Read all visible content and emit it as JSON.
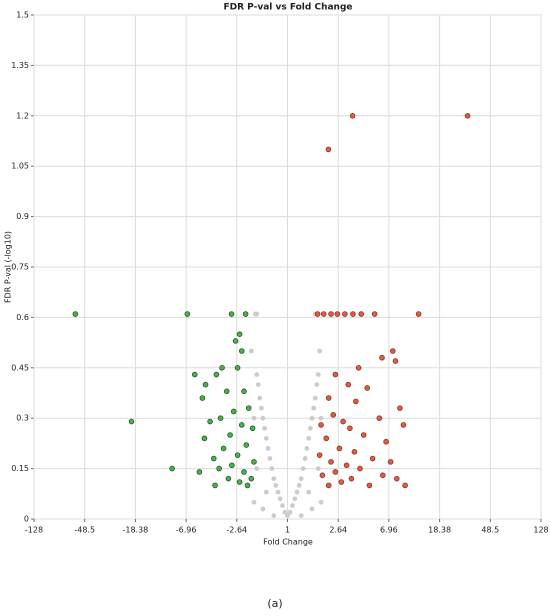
{
  "chart_data": {
    "type": "scatter",
    "title": "FDR P-val vs Fold Change",
    "x_label": "Fold Change",
    "y_label": "FDR P-val (-log10)",
    "caption": "(a)",
    "xscale": "signed-log2",
    "grid": true,
    "xlim": [
      -128,
      128
    ],
    "xticks": [
      -128,
      -48.5,
      -18.38,
      -6.96,
      -2.64,
      1,
      2.64,
      6.96,
      18.38,
      48.5,
      128
    ],
    "ylim": [
      0,
      1.5
    ],
    "yticks": [
      0,
      0.15,
      0.3,
      0.45,
      0.6,
      0.75,
      0.9,
      1.05,
      1.2,
      1.35,
      1.5
    ],
    "series": [
      {
        "color": "#cccccc",
        "stroke": "none",
        "x": [
          1,
          1.05,
          -1.05,
          1.1,
          -1.1,
          1.15,
          -1.15,
          1.2,
          -1.2,
          1.25,
          -1.25,
          1.3,
          -1.3,
          1.35,
          -1.35,
          1.4,
          -1.4,
          1.45,
          -1.45,
          1.5,
          -1.5,
          1.55,
          -1.55,
          1.6,
          -1.6,
          1.65,
          -1.65,
          1.7,
          -1.7,
          1.75,
          -1.75,
          1.8,
          -1.8,
          1.7,
          1.75,
          -1.8,
          -1.85,
          1.9,
          -1.9,
          1.6,
          -1.6,
          1.3,
          -1.3,
          1.8,
          -1.8,
          1.5,
          -1.5,
          1.9,
          -1.9,
          1.85,
          -2.0
        ],
        "values": [
          0.01,
          0.02,
          0.02,
          0.04,
          0.04,
          0.06,
          0.06,
          0.08,
          0.08,
          0.1,
          0.1,
          0.12,
          0.12,
          0.15,
          0.15,
          0.18,
          0.18,
          0.21,
          0.21,
          0.24,
          0.24,
          0.27,
          0.27,
          0.3,
          0.3,
          0.33,
          0.33,
          0.36,
          0.36,
          0.4,
          0.4,
          0.43,
          0.43,
          0.61,
          0.61,
          0.61,
          0.61,
          0.05,
          0.05,
          0.03,
          0.03,
          0.01,
          0.01,
          0.15,
          0.15,
          0.08,
          0.08,
          0.3,
          0.3,
          0.5,
          0.5
        ]
      },
      {
        "color": "#e8584a",
        "stroke": "#7a3a1c",
        "x": [
          3.48,
          31.4,
          2.19,
          12.3,
          1.78,
          2.0,
          2.3,
          2.6,
          3.0,
          3.5,
          4.1,
          5.3,
          7.5,
          7.9,
          6.1,
          3.9,
          2.5,
          3.2,
          4.6,
          2.2,
          3.7,
          8.6,
          2.4,
          2.9,
          5.8,
          1.9,
          3.3,
          9.2,
          4.3,
          2.1,
          6.6,
          2.7,
          3.6,
          1.85,
          5.1,
          2.3,
          7.2,
          3.1,
          4.0,
          2.5,
          1.95,
          6.2,
          3.4,
          8.1,
          2.8,
          4.8,
          2.2,
          9.5
        ],
        "values": [
          1.2,
          1.2,
          1.1,
          0.61,
          0.61,
          0.61,
          0.61,
          0.61,
          0.61,
          0.61,
          0.61,
          0.61,
          0.5,
          0.47,
          0.48,
          0.45,
          0.43,
          0.4,
          0.39,
          0.36,
          0.35,
          0.33,
          0.31,
          0.29,
          0.3,
          0.28,
          0.27,
          0.28,
          0.25,
          0.24,
          0.23,
          0.21,
          0.2,
          0.19,
          0.18,
          0.17,
          0.17,
          0.16,
          0.15,
          0.14,
          0.13,
          0.13,
          0.12,
          0.12,
          0.11,
          0.1,
          0.1,
          0.1
        ]
      },
      {
        "color": "#4caf50",
        "stroke": "#1d5a1f",
        "x": [
          -58,
          -19.8,
          -9.1,
          -6.8,
          -2.92,
          -2.23,
          -5.9,
          -4.8,
          -3.9,
          -2.6,
          -2.3,
          -3.2,
          -5.1,
          -2.1,
          -2.8,
          -3.6,
          -4.4,
          -2.4,
          -1.95,
          -3.0,
          -4.9,
          -2.2,
          -3.4,
          -2.6,
          -4.1,
          -1.9,
          -2.9,
          -3.7,
          -2.3,
          -5.4,
          -2.0,
          -3.1,
          -2.5,
          -4.0,
          -2.15,
          -3.5,
          -2.7,
          -2.5,
          -2.4
        ],
        "values": [
          0.61,
          0.29,
          0.15,
          0.61,
          0.61,
          0.61,
          0.43,
          0.4,
          0.43,
          0.45,
          0.38,
          0.38,
          0.36,
          0.33,
          0.32,
          0.3,
          0.29,
          0.28,
          0.27,
          0.25,
          0.24,
          0.22,
          0.21,
          0.19,
          0.18,
          0.17,
          0.16,
          0.15,
          0.14,
          0.14,
          0.12,
          0.12,
          0.11,
          0.1,
          0.1,
          0.45,
          0.53,
          0.55,
          0.5
        ]
      }
    ]
  }
}
